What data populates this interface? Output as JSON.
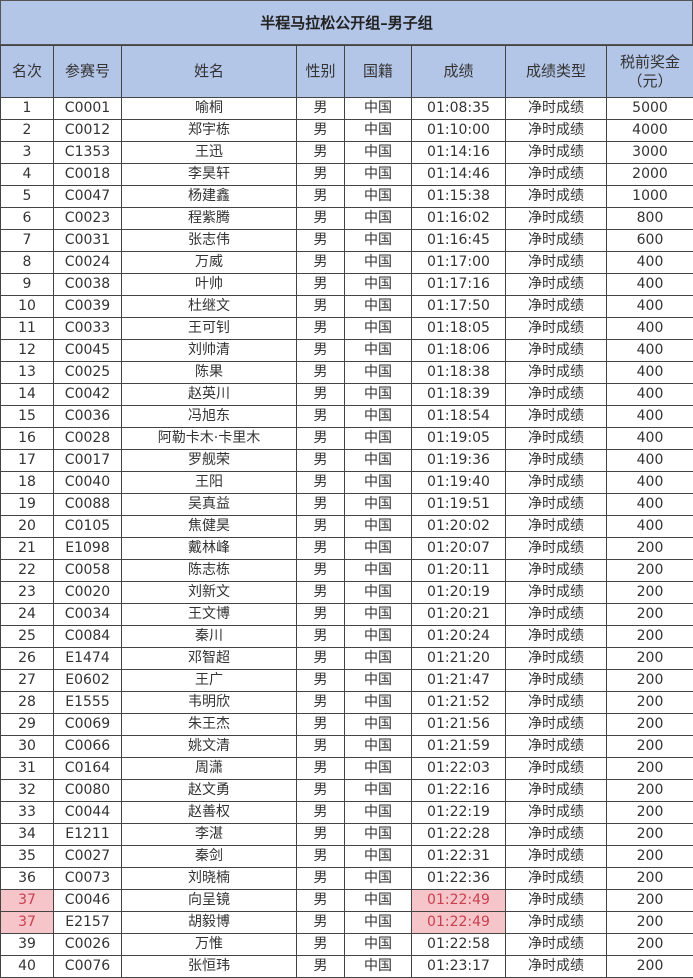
{
  "title": "半程马拉松公开组–男子组",
  "headers": [
    "名次",
    "参赛号",
    "姓名",
    "性别",
    "国籍",
    "成绩",
    "成绩类型",
    "税前奖金（元）"
  ],
  "highlight_color": "#f6c5c9",
  "rows": [
    {
      "rank": "1",
      "bib": "C0001",
      "name": "喻桐",
      "gender": "男",
      "nation": "中国",
      "time": "01:08:35",
      "type": "净时成绩",
      "prize": "5000"
    },
    {
      "rank": "2",
      "bib": "C0012",
      "name": "郑宇栋",
      "gender": "男",
      "nation": "中国",
      "time": "01:10:00",
      "type": "净时成绩",
      "prize": "4000"
    },
    {
      "rank": "3",
      "bib": "C1353",
      "name": "王迅",
      "gender": "男",
      "nation": "中国",
      "time": "01:14:16",
      "type": "净时成绩",
      "prize": "3000"
    },
    {
      "rank": "4",
      "bib": "C0018",
      "name": "李昊轩",
      "gender": "男",
      "nation": "中国",
      "time": "01:14:46",
      "type": "净时成绩",
      "prize": "2000"
    },
    {
      "rank": "5",
      "bib": "C0047",
      "name": "杨建鑫",
      "gender": "男",
      "nation": "中国",
      "time": "01:15:38",
      "type": "净时成绩",
      "prize": "1000"
    },
    {
      "rank": "6",
      "bib": "C0023",
      "name": "程紫腾",
      "gender": "男",
      "nation": "中国",
      "time": "01:16:02",
      "type": "净时成绩",
      "prize": "800"
    },
    {
      "rank": "7",
      "bib": "C0031",
      "name": "张志伟",
      "gender": "男",
      "nation": "中国",
      "time": "01:16:45",
      "type": "净时成绩",
      "prize": "600"
    },
    {
      "rank": "8",
      "bib": "C0024",
      "name": "万威",
      "gender": "男",
      "nation": "中国",
      "time": "01:17:00",
      "type": "净时成绩",
      "prize": "400"
    },
    {
      "rank": "9",
      "bib": "C0038",
      "name": "叶帅",
      "gender": "男",
      "nation": "中国",
      "time": "01:17:16",
      "type": "净时成绩",
      "prize": "400"
    },
    {
      "rank": "10",
      "bib": "C0039",
      "name": "杜继文",
      "gender": "男",
      "nation": "中国",
      "time": "01:17:50",
      "type": "净时成绩",
      "prize": "400"
    },
    {
      "rank": "11",
      "bib": "C0033",
      "name": "王可钊",
      "gender": "男",
      "nation": "中国",
      "time": "01:18:05",
      "type": "净时成绩",
      "prize": "400"
    },
    {
      "rank": "12",
      "bib": "C0045",
      "name": "刘帅清",
      "gender": "男",
      "nation": "中国",
      "time": "01:18:06",
      "type": "净时成绩",
      "prize": "400"
    },
    {
      "rank": "13",
      "bib": "C0025",
      "name": "陈果",
      "gender": "男",
      "nation": "中国",
      "time": "01:18:38",
      "type": "净时成绩",
      "prize": "400"
    },
    {
      "rank": "14",
      "bib": "C0042",
      "name": "赵英川",
      "gender": "男",
      "nation": "中国",
      "time": "01:18:39",
      "type": "净时成绩",
      "prize": "400"
    },
    {
      "rank": "15",
      "bib": "C0036",
      "name": "冯旭东",
      "gender": "男",
      "nation": "中国",
      "time": "01:18:54",
      "type": "净时成绩",
      "prize": "400"
    },
    {
      "rank": "16",
      "bib": "C0028",
      "name": "阿勒卡木·卡里木",
      "gender": "男",
      "nation": "中国",
      "time": "01:19:05",
      "type": "净时成绩",
      "prize": "400"
    },
    {
      "rank": "17",
      "bib": "C0017",
      "name": "罗舰荣",
      "gender": "男",
      "nation": "中国",
      "time": "01:19:36",
      "type": "净时成绩",
      "prize": "400"
    },
    {
      "rank": "18",
      "bib": "C0040",
      "name": "王阳",
      "gender": "男",
      "nation": "中国",
      "time": "01:19:40",
      "type": "净时成绩",
      "prize": "400"
    },
    {
      "rank": "19",
      "bib": "C0088",
      "name": "吴真益",
      "gender": "男",
      "nation": "中国",
      "time": "01:19:51",
      "type": "净时成绩",
      "prize": "400"
    },
    {
      "rank": "20",
      "bib": "C0105",
      "name": "焦健昊",
      "gender": "男",
      "nation": "中国",
      "time": "01:20:02",
      "type": "净时成绩",
      "prize": "400"
    },
    {
      "rank": "21",
      "bib": "E1098",
      "name": "戴林峰",
      "gender": "男",
      "nation": "中国",
      "time": "01:20:07",
      "type": "净时成绩",
      "prize": "200"
    },
    {
      "rank": "22",
      "bib": "C0058",
      "name": "陈志栋",
      "gender": "男",
      "nation": "中国",
      "time": "01:20:11",
      "type": "净时成绩",
      "prize": "200"
    },
    {
      "rank": "23",
      "bib": "C0020",
      "name": "刘新文",
      "gender": "男",
      "nation": "中国",
      "time": "01:20:19",
      "type": "净时成绩",
      "prize": "200"
    },
    {
      "rank": "24",
      "bib": "C0034",
      "name": "王文博",
      "gender": "男",
      "nation": "中国",
      "time": "01:20:21",
      "type": "净时成绩",
      "prize": "200"
    },
    {
      "rank": "25",
      "bib": "C0084",
      "name": "秦川",
      "gender": "男",
      "nation": "中国",
      "time": "01:20:24",
      "type": "净时成绩",
      "prize": "200"
    },
    {
      "rank": "26",
      "bib": "E1474",
      "name": "邓智超",
      "gender": "男",
      "nation": "中国",
      "time": "01:21:20",
      "type": "净时成绩",
      "prize": "200"
    },
    {
      "rank": "27",
      "bib": "E0602",
      "name": "王广",
      "gender": "男",
      "nation": "中国",
      "time": "01:21:47",
      "type": "净时成绩",
      "prize": "200"
    },
    {
      "rank": "28",
      "bib": "E1555",
      "name": "韦明欣",
      "gender": "男",
      "nation": "中国",
      "time": "01:21:52",
      "type": "净时成绩",
      "prize": "200"
    },
    {
      "rank": "29",
      "bib": "C0069",
      "name": "朱王杰",
      "gender": "男",
      "nation": "中国",
      "time": "01:21:56",
      "type": "净时成绩",
      "prize": "200"
    },
    {
      "rank": "30",
      "bib": "C0066",
      "name": "姚文清",
      "gender": "男",
      "nation": "中国",
      "time": "01:21:59",
      "type": "净时成绩",
      "prize": "200"
    },
    {
      "rank": "31",
      "bib": "C0164",
      "name": "周潇",
      "gender": "男",
      "nation": "中国",
      "time": "01:22:03",
      "type": "净时成绩",
      "prize": "200"
    },
    {
      "rank": "32",
      "bib": "C0080",
      "name": "赵文勇",
      "gender": "男",
      "nation": "中国",
      "time": "01:22:16",
      "type": "净时成绩",
      "prize": "200"
    },
    {
      "rank": "33",
      "bib": "C0044",
      "name": "赵善权",
      "gender": "男",
      "nation": "中国",
      "time": "01:22:19",
      "type": "净时成绩",
      "prize": "200"
    },
    {
      "rank": "34",
      "bib": "E1211",
      "name": "李湛",
      "gender": "男",
      "nation": "中国",
      "time": "01:22:28",
      "type": "净时成绩",
      "prize": "200"
    },
    {
      "rank": "35",
      "bib": "C0027",
      "name": "秦剑",
      "gender": "男",
      "nation": "中国",
      "time": "01:22:31",
      "type": "净时成绩",
      "prize": "200"
    },
    {
      "rank": "36",
      "bib": "C0073",
      "name": "刘晓楠",
      "gender": "男",
      "nation": "中国",
      "time": "01:22:36",
      "type": "净时成绩",
      "prize": "200"
    },
    {
      "rank": "37",
      "bib": "C0046",
      "name": "向呈镜",
      "gender": "男",
      "nation": "中国",
      "time": "01:22:49",
      "type": "净时成绩",
      "prize": "200",
      "highlight": true
    },
    {
      "rank": "37",
      "bib": "E2157",
      "name": "胡毅博",
      "gender": "男",
      "nation": "中国",
      "time": "01:22:49",
      "type": "净时成绩",
      "prize": "200",
      "highlight": true
    },
    {
      "rank": "39",
      "bib": "C0026",
      "name": "万惟",
      "gender": "男",
      "nation": "中国",
      "time": "01:22:58",
      "type": "净时成绩",
      "prize": "200"
    },
    {
      "rank": "40",
      "bib": "C0076",
      "name": "张恒玮",
      "gender": "男",
      "nation": "中国",
      "time": "01:23:17",
      "type": "净时成绩",
      "prize": "200"
    }
  ]
}
